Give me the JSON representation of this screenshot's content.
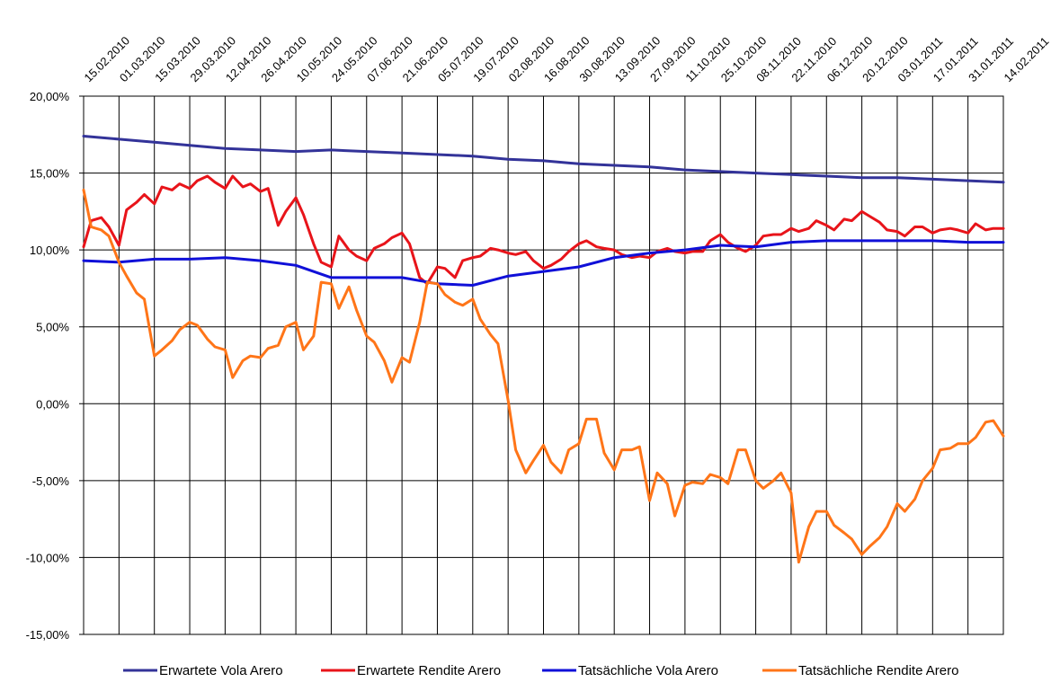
{
  "chart_data": {
    "type": "line",
    "title": "",
    "xlabel": "",
    "ylabel": "",
    "x_start": "15.02.2010",
    "x_end": "14.02.2011",
    "ylim": [
      -15,
      20
    ],
    "y_ticks": [
      20,
      15,
      10,
      5,
      0,
      -5,
      -10,
      -15
    ],
    "y_tick_labels": [
      "20,00%",
      "15,00%",
      "10,00%",
      "5,00%",
      "0,00%",
      "-5,00%",
      "-10,00%",
      "-15,00%"
    ],
    "x_tick_labels": [
      "15.02.2010",
      "01.03.2010",
      "15.03.2010",
      "29.03.2010",
      "12.04.2010",
      "26.04.2010",
      "10.05.2010",
      "24.05.2010",
      "07.06.2010",
      "21.06.2010",
      "05.07.2010",
      "19.07.2010",
      "02.08.2010",
      "16.08.2010",
      "30.08.2010",
      "13.09.2010",
      "27.09.2010",
      "11.10.2010",
      "25.10.2010",
      "08.11.2010",
      "22.11.2010",
      "06.12.2010",
      "20.12.2010",
      "03.01.2011",
      "17.01.2011",
      "31.01.2011",
      "14.02.2011"
    ],
    "grid": true,
    "legend_position": "bottom",
    "series": [
      {
        "name": "Erwartete Vola Arero",
        "color": "#333399",
        "x": [
          "15.02.2010",
          "01.03.2010",
          "15.03.2010",
          "29.03.2010",
          "12.04.2010",
          "26.04.2010",
          "10.05.2010",
          "24.05.2010",
          "07.06.2010",
          "21.06.2010",
          "05.07.2010",
          "19.07.2010",
          "02.08.2010",
          "16.08.2010",
          "30.08.2010",
          "13.09.2010",
          "27.09.2010",
          "11.10.2010",
          "25.10.2010",
          "08.11.2010",
          "22.11.2010",
          "06.12.2010",
          "20.12.2010",
          "03.01.2011",
          "17.01.2011",
          "31.01.2011",
          "14.02.2011"
        ],
        "y": [
          17.4,
          17.2,
          17.0,
          16.8,
          16.6,
          16.5,
          16.4,
          16.5,
          16.4,
          16.3,
          16.2,
          16.1,
          15.9,
          15.8,
          15.6,
          15.5,
          15.4,
          15.2,
          15.1,
          15.0,
          14.9,
          14.8,
          14.7,
          14.7,
          14.6,
          14.5,
          14.4
        ]
      },
      {
        "name": "Erwartete Rendite Arero",
        "color": "#e8141a",
        "x": [
          "15.02.2010",
          "18.02.2010",
          "22.02.2010",
          "25.02.2010",
          "01.03.2010",
          "04.03.2010",
          "08.03.2010",
          "11.03.2010",
          "15.03.2010",
          "18.03.2010",
          "22.03.2010",
          "25.03.2010",
          "29.03.2010",
          "01.04.2010",
          "05.04.2010",
          "08.04.2010",
          "12.04.2010",
          "15.04.2010",
          "19.04.2010",
          "22.04.2010",
          "26.04.2010",
          "29.04.2010",
          "03.05.2010",
          "06.05.2010",
          "10.05.2010",
          "13.05.2010",
          "17.05.2010",
          "20.05.2010",
          "24.05.2010",
          "27.05.2010",
          "31.05.2010",
          "03.06.2010",
          "07.06.2010",
          "10.06.2010",
          "14.06.2010",
          "17.06.2010",
          "21.06.2010",
          "24.06.2010",
          "28.06.2010",
          "01.07.2010",
          "05.07.2010",
          "08.07.2010",
          "12.07.2010",
          "15.07.2010",
          "19.07.2010",
          "22.07.2010",
          "26.07.2010",
          "29.07.2010",
          "02.08.2010",
          "05.08.2010",
          "09.08.2010",
          "12.08.2010",
          "16.08.2010",
          "19.08.2010",
          "23.08.2010",
          "26.08.2010",
          "30.08.2010",
          "02.09.2010",
          "06.09.2010",
          "09.09.2010",
          "13.09.2010",
          "16.09.2010",
          "20.09.2010",
          "23.09.2010",
          "27.09.2010",
          "30.09.2010",
          "04.10.2010",
          "07.10.2010",
          "11.10.2010",
          "14.10.2010",
          "18.10.2010",
          "21.10.2010",
          "25.10.2010",
          "28.10.2010",
          "01.11.2010",
          "04.11.2010",
          "08.11.2010",
          "11.11.2010",
          "15.11.2010",
          "18.11.2010",
          "22.11.2010",
          "25.11.2010",
          "29.11.2010",
          "02.12.2010",
          "06.12.2010",
          "09.12.2010",
          "13.12.2010",
          "16.12.2010",
          "20.12.2010",
          "23.12.2010",
          "27.12.2010",
          "30.12.2010",
          "03.01.2011",
          "06.01.2011",
          "10.01.2011",
          "13.01.2011",
          "17.01.2011",
          "20.01.2011",
          "24.01.2011",
          "27.01.2011",
          "31.01.2011",
          "03.02.2011",
          "07.02.2011",
          "10.02.2011",
          "14.02.2011"
        ],
        "y": [
          10.2,
          11.9,
          12.1,
          11.5,
          10.3,
          12.6,
          13.1,
          13.6,
          13.0,
          14.1,
          13.9,
          14.3,
          14.0,
          14.5,
          14.8,
          14.4,
          14.0,
          14.8,
          14.1,
          14.3,
          13.8,
          14.0,
          11.6,
          12.5,
          13.4,
          12.3,
          10.4,
          9.2,
          8.9,
          10.9,
          10.0,
          9.6,
          9.3,
          10.1,
          10.4,
          10.8,
          11.1,
          10.4,
          8.2,
          7.8,
          8.9,
          8.8,
          8.2,
          9.3,
          9.5,
          9.6,
          10.1,
          10.0,
          9.8,
          9.7,
          9.9,
          9.3,
          8.8,
          9.0,
          9.4,
          9.9,
          10.4,
          10.6,
          10.2,
          10.1,
          10.0,
          9.7,
          9.5,
          9.6,
          9.5,
          9.9,
          10.1,
          9.9,
          9.8,
          9.9,
          9.9,
          10.6,
          11.0,
          10.5,
          10.1,
          9.9,
          10.3,
          10.9,
          11.0,
          11.0,
          11.4,
          11.2,
          11.4,
          11.9,
          11.6,
          11.3,
          12.0,
          11.9,
          12.5,
          12.2,
          11.8,
          11.3,
          11.2,
          10.9,
          11.5,
          11.5,
          11.1,
          11.3,
          11.4,
          11.3,
          11.1,
          11.7,
          11.3,
          11.4,
          11.4
        ]
      },
      {
        "name": "Tatsächliche Vola Arero",
        "color": "#1010d8",
        "x": [
          "15.02.2010",
          "01.03.2010",
          "15.03.2010",
          "29.03.2010",
          "12.04.2010",
          "26.04.2010",
          "10.05.2010",
          "24.05.2010",
          "07.06.2010",
          "21.06.2010",
          "05.07.2010",
          "19.07.2010",
          "02.08.2010",
          "16.08.2010",
          "30.08.2010",
          "13.09.2010",
          "27.09.2010",
          "11.10.2010",
          "25.10.2010",
          "08.11.2010",
          "22.11.2010",
          "06.12.2010",
          "20.12.2010",
          "03.01.2011",
          "17.01.2011",
          "31.01.2011",
          "14.02.2011"
        ],
        "y": [
          9.3,
          9.2,
          9.4,
          9.4,
          9.5,
          9.3,
          9.0,
          8.2,
          8.2,
          8.2,
          7.8,
          7.7,
          8.3,
          8.6,
          8.9,
          9.5,
          9.8,
          10.0,
          10.3,
          10.2,
          10.5,
          10.6,
          10.6,
          10.6,
          10.6,
          10.5,
          10.5
        ]
      },
      {
        "name": "Tatsächliche Rendite Arero",
        "color": "#ff7518",
        "x": [
          "15.02.2010",
          "18.02.2010",
          "22.02.2010",
          "25.02.2010",
          "01.03.2010",
          "04.03.2010",
          "08.03.2010",
          "11.03.2010",
          "15.03.2010",
          "18.03.2010",
          "22.03.2010",
          "25.03.2010",
          "29.03.2010",
          "01.04.2010",
          "05.04.2010",
          "08.04.2010",
          "12.04.2010",
          "15.04.2010",
          "19.04.2010",
          "22.04.2010",
          "26.04.2010",
          "29.04.2010",
          "03.05.2010",
          "06.05.2010",
          "10.05.2010",
          "13.05.2010",
          "17.05.2010",
          "20.05.2010",
          "24.05.2010",
          "27.05.2010",
          "31.05.2010",
          "03.06.2010",
          "07.06.2010",
          "10.06.2010",
          "14.06.2010",
          "17.06.2010",
          "21.06.2010",
          "24.06.2010",
          "28.06.2010",
          "01.07.2010",
          "05.07.2010",
          "08.07.2010",
          "12.07.2010",
          "15.07.2010",
          "19.07.2010",
          "22.07.2010",
          "26.07.2010",
          "29.07.2010",
          "02.08.2010",
          "05.08.2010",
          "09.08.2010",
          "12.08.2010",
          "16.08.2010",
          "19.08.2010",
          "23.08.2010",
          "26.08.2010",
          "30.08.2010",
          "02.09.2010",
          "06.09.2010",
          "09.09.2010",
          "13.09.2010",
          "16.09.2010",
          "20.09.2010",
          "23.09.2010",
          "27.09.2010",
          "30.09.2010",
          "04.10.2010",
          "07.10.2010",
          "11.10.2010",
          "14.10.2010",
          "18.10.2010",
          "21.10.2010",
          "25.10.2010",
          "28.10.2010",
          "01.11.2010",
          "04.11.2010",
          "08.11.2010",
          "11.11.2010",
          "15.11.2010",
          "18.11.2010",
          "22.11.2010",
          "25.11.2010",
          "29.11.2010",
          "02.12.2010",
          "06.12.2010",
          "09.12.2010",
          "13.12.2010",
          "16.12.2010",
          "20.12.2010",
          "23.12.2010",
          "27.12.2010",
          "30.12.2010",
          "03.01.2011",
          "06.01.2011",
          "10.01.2011",
          "13.01.2011",
          "17.01.2011",
          "20.01.2011",
          "24.01.2011",
          "27.01.2011",
          "31.01.2011",
          "03.02.2011",
          "07.02.2011",
          "10.02.2011",
          "14.02.2011"
        ],
        "y": [
          13.9,
          11.5,
          11.3,
          10.9,
          9.2,
          8.3,
          7.2,
          6.8,
          3.1,
          3.5,
          4.1,
          4.8,
          5.3,
          5.1,
          4.2,
          3.7,
          3.5,
          1.7,
          2.8,
          3.1,
          3.0,
          3.6,
          3.8,
          5.0,
          5.3,
          3.5,
          4.4,
          7.9,
          7.8,
          6.2,
          7.6,
          6.1,
          4.4,
          4.0,
          2.8,
          1.4,
          3.0,
          2.7,
          5.3,
          7.9,
          7.8,
          7.1,
          6.6,
          6.4,
          6.8,
          5.5,
          4.5,
          3.9,
          0.2,
          -3.0,
          -4.5,
          -3.7,
          -2.7,
          -3.8,
          -4.5,
          -3.0,
          -2.6,
          -1.0,
          -1.0,
          -3.2,
          -4.3,
          -3.0,
          -3.0,
          -2.8,
          -6.3,
          -4.5,
          -5.2,
          -7.3,
          -5.3,
          -5.1,
          -5.2,
          -4.6,
          -4.8,
          -5.2,
          -3.0,
          -3.0,
          -5.0,
          -5.5,
          -5.0,
          -4.5,
          -5.8,
          -10.3,
          -8.0,
          -7.0,
          -7.0,
          -7.9,
          -8.4,
          -8.8,
          -9.8,
          -9.3,
          -8.7,
          -8.0,
          -6.5,
          -7.0,
          -6.2,
          -5.0,
          -4.2,
          -3.0,
          -2.9,
          -2.6,
          -2.6,
          -2.2,
          -1.2,
          -1.1,
          -2.1
        ]
      }
    ]
  }
}
